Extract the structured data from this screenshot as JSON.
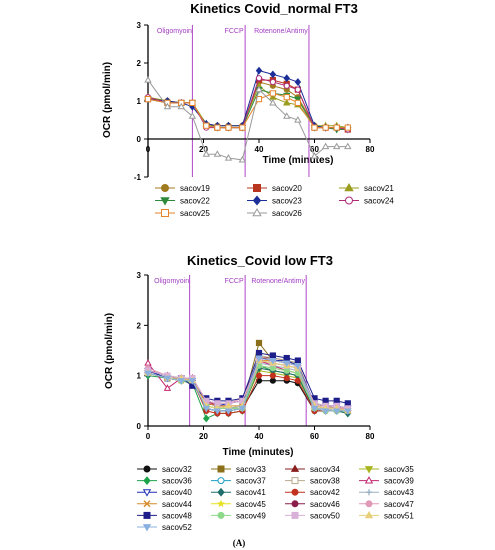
{
  "caption": "(A)",
  "chart_data": [
    {
      "type": "line",
      "title": "Kinetics Covid_normal FT3",
      "xlabel": "Time (minutes)",
      "ylabel": "OCR (pmol/min)",
      "xlim": [
        0,
        80
      ],
      "ylim": [
        -1,
        3
      ],
      "xticks": [
        "0",
        "20",
        "40",
        "60",
        "80"
      ],
      "yticks": [
        "-1",
        "0",
        "1",
        "2",
        "3"
      ],
      "phases": [
        {
          "label": "Oligomyoin",
          "x": 16
        },
        {
          "label": "FCCP",
          "x": 35
        },
        {
          "label": "Rotenone/Antimy",
          "x": 58
        }
      ],
      "x": [
        0,
        7,
        12,
        16,
        21,
        25,
        29,
        34,
        40,
        45,
        50,
        54,
        60,
        64,
        68,
        72
      ],
      "legend_columns": 3,
      "series": [
        {
          "name": "sacov19",
          "color": "#a07a1e",
          "marker": "circle",
          "values": [
            1.1,
            1.0,
            0.95,
            0.95,
            0.35,
            0.35,
            0.35,
            0.35,
            1.5,
            1.4,
            1.3,
            1.1,
            0.35,
            0.3,
            0.3,
            0.3
          ]
        },
        {
          "name": "sacov20",
          "color": "#b8361f",
          "marker": "square",
          "values": [
            1.05,
            0.95,
            0.95,
            0.95,
            0.35,
            0.3,
            0.3,
            0.3,
            1.55,
            1.55,
            1.45,
            1.3,
            0.3,
            0.3,
            0.3,
            0.25
          ]
        },
        {
          "name": "sacov21",
          "color": "#999c1c",
          "marker": "triangle",
          "values": [
            1.1,
            1.0,
            0.95,
            0.95,
            0.4,
            0.35,
            0.35,
            0.35,
            1.4,
            1.1,
            0.95,
            0.9,
            0.35,
            0.35,
            0.35,
            0.3
          ]
        },
        {
          "name": "sacov22",
          "color": "#2e8a3a",
          "marker": "triangle-down",
          "values": [
            1.05,
            0.95,
            0.95,
            0.95,
            0.35,
            0.3,
            0.3,
            0.3,
            1.3,
            1.2,
            1.15,
            1.05,
            0.3,
            0.3,
            0.25,
            0.25
          ]
        },
        {
          "name": "sacov23",
          "color": "#1c2f98",
          "marker": "diamond",
          "values": [
            1.05,
            1.0,
            0.95,
            0.85,
            0.4,
            0.35,
            0.35,
            0.35,
            1.8,
            1.7,
            1.6,
            1.5,
            0.35,
            0.3,
            0.3,
            0.3
          ]
        },
        {
          "name": "sacov24",
          "color": "#b02a78",
          "marker": "circle-open",
          "values": [
            1.1,
            0.95,
            0.95,
            0.95,
            0.3,
            0.3,
            0.3,
            0.3,
            1.6,
            1.5,
            1.4,
            1.3,
            0.3,
            0.3,
            0.3,
            0.25
          ]
        },
        {
          "name": "sacov25",
          "color": "#e5852a",
          "marker": "square-open",
          "values": [
            1.05,
            0.95,
            0.95,
            0.95,
            0.35,
            0.3,
            0.3,
            0.3,
            1.05,
            1.2,
            1.1,
            0.95,
            0.3,
            0.3,
            0.3,
            0.3
          ]
        },
        {
          "name": "sacov26",
          "color": "#9a9a9a",
          "marker": "triangle-open",
          "values": [
            1.55,
            0.85,
            0.85,
            0.6,
            -0.4,
            -0.4,
            -0.5,
            -0.55,
            1.3,
            0.95,
            0.6,
            0.5,
            -0.45,
            -0.2,
            -0.2,
            -0.2
          ]
        }
      ]
    },
    {
      "type": "line",
      "title": "Kinetics_Covid low FT3",
      "xlabel": "Time (minutes)",
      "ylabel": "OCR (pmol/min)",
      "xlim": [
        0,
        80
      ],
      "ylim": [
        0,
        3
      ],
      "xticks": [
        "0",
        "20",
        "40",
        "60",
        "80"
      ],
      "yticks": [
        "0",
        "1",
        "2",
        "3"
      ],
      "phases": [
        {
          "label": "Oligomyoin",
          "x": 15
        },
        {
          "label": "FCCP",
          "x": 35
        },
        {
          "label": "Rotenone/Antimy",
          "x": 57
        }
      ],
      "x": [
        0,
        7,
        12,
        16,
        21,
        25,
        29,
        34,
        40,
        45,
        50,
        54,
        60,
        64,
        68,
        72
      ],
      "legend_columns": 4,
      "series": [
        {
          "name": "sacov32",
          "color": "#111111",
          "marker": "circle",
          "values": [
            1.05,
            0.95,
            0.9,
            0.9,
            0.35,
            0.3,
            0.3,
            0.35,
            0.9,
            0.9,
            0.9,
            0.85,
            0.3,
            0.3,
            0.3,
            0.3
          ]
        },
        {
          "name": "sacov33",
          "color": "#8b6f1a",
          "marker": "square",
          "values": [
            1.1,
            0.95,
            0.95,
            0.9,
            0.4,
            0.35,
            0.35,
            0.4,
            1.65,
            1.3,
            1.3,
            1.2,
            0.4,
            0.35,
            0.35,
            0.3
          ]
        },
        {
          "name": "sacov34",
          "color": "#8a1f1f",
          "marker": "triangle",
          "values": [
            1.1,
            1.0,
            0.95,
            0.95,
            0.5,
            0.4,
            0.4,
            0.4,
            1.35,
            1.35,
            1.3,
            1.25,
            0.4,
            0.35,
            0.35,
            0.35
          ]
        },
        {
          "name": "sacov35",
          "color": "#a9b51f",
          "marker": "triangle-down",
          "values": [
            1.05,
            0.95,
            0.9,
            0.9,
            0.4,
            0.35,
            0.35,
            0.35,
            1.1,
            1.05,
            1.0,
            0.95,
            0.35,
            0.3,
            0.3,
            0.3
          ]
        },
        {
          "name": "sacov36",
          "color": "#1ea34a",
          "marker": "diamond",
          "values": [
            1.0,
            0.95,
            0.9,
            0.85,
            0.15,
            0.25,
            0.25,
            0.3,
            1.2,
            1.1,
            1.05,
            1.0,
            0.3,
            0.3,
            0.3,
            0.25
          ]
        },
        {
          "name": "sacov37",
          "color": "#1c9ec2",
          "marker": "circle-open",
          "values": [
            1.1,
            0.95,
            0.95,
            0.9,
            0.4,
            0.35,
            0.35,
            0.35,
            1.3,
            1.25,
            1.2,
            1.15,
            0.35,
            0.3,
            0.3,
            0.3
          ]
        },
        {
          "name": "sacov38",
          "color": "#b8a88c",
          "marker": "square-open",
          "values": [
            1.1,
            1.0,
            0.95,
            0.9,
            0.45,
            0.4,
            0.4,
            0.4,
            1.4,
            1.35,
            1.3,
            1.25,
            0.4,
            0.4,
            0.35,
            0.35
          ]
        },
        {
          "name": "sacov39",
          "color": "#c2286e",
          "marker": "triangle-open",
          "values": [
            1.25,
            0.75,
            0.95,
            0.95,
            0.5,
            0.4,
            0.4,
            0.4,
            1.3,
            1.2,
            1.1,
            1.05,
            0.4,
            0.35,
            0.35,
            0.3
          ]
        },
        {
          "name": "sacov40",
          "color": "#1e2fb5",
          "marker": "triangle-down-open",
          "values": [
            1.1,
            0.95,
            0.95,
            0.9,
            0.45,
            0.4,
            0.45,
            0.5,
            1.35,
            1.3,
            1.3,
            1.2,
            0.45,
            0.4,
            0.4,
            0.35
          ]
        },
        {
          "name": "sacov41",
          "color": "#1f6e6a",
          "marker": "diamond",
          "values": [
            1.05,
            0.95,
            0.9,
            0.9,
            0.35,
            0.3,
            0.3,
            0.35,
            1.15,
            1.1,
            1.05,
            1.0,
            0.3,
            0.3,
            0.3,
            0.25
          ]
        },
        {
          "name": "sacov42",
          "color": "#c2311e",
          "marker": "circle",
          "values": [
            1.05,
            0.95,
            0.95,
            0.9,
            0.3,
            0.25,
            0.25,
            0.3,
            1.0,
            1.0,
            0.95,
            0.9,
            0.3,
            0.3,
            0.3,
            0.3
          ]
        },
        {
          "name": "sacov43",
          "color": "#9ab0c2",
          "marker": "plus",
          "values": [
            1.1,
            1.0,
            0.95,
            0.95,
            0.4,
            0.35,
            0.35,
            0.4,
            1.25,
            1.2,
            1.15,
            1.1,
            0.35,
            0.35,
            0.3,
            0.3
          ]
        },
        {
          "name": "sacov44",
          "color": "#d98a2a",
          "marker": "cross",
          "values": [
            1.05,
            0.95,
            0.9,
            0.9,
            0.45,
            0.4,
            0.4,
            0.4,
            1.3,
            1.3,
            1.25,
            1.2,
            0.4,
            0.35,
            0.35,
            0.35
          ]
        },
        {
          "name": "sacov45",
          "color": "#e6e01e",
          "marker": "star",
          "values": [
            1.05,
            0.95,
            0.9,
            0.9,
            0.4,
            0.35,
            0.35,
            0.35,
            1.2,
            1.15,
            1.1,
            1.05,
            0.35,
            0.3,
            0.3,
            0.3
          ]
        },
        {
          "name": "sacov46",
          "color": "#8a1e4a",
          "marker": "circle",
          "values": [
            1.1,
            1.0,
            0.95,
            0.95,
            0.5,
            0.45,
            0.45,
            0.5,
            1.3,
            1.25,
            1.2,
            1.15,
            0.45,
            0.4,
            0.4,
            0.35
          ]
        },
        {
          "name": "sacov47",
          "color": "#e09ab8",
          "marker": "circle",
          "values": [
            1.15,
            1.0,
            0.95,
            0.95,
            0.5,
            0.45,
            0.45,
            0.55,
            1.2,
            1.15,
            1.1,
            1.05,
            0.4,
            0.35,
            0.35,
            0.35
          ]
        },
        {
          "name": "sacov48",
          "color": "#1e1e8a",
          "marker": "square",
          "values": [
            1.05,
            0.95,
            0.95,
            0.8,
            0.55,
            0.5,
            0.5,
            0.55,
            1.45,
            1.4,
            1.35,
            1.3,
            0.55,
            0.5,
            0.5,
            0.45
          ]
        },
        {
          "name": "sacov49",
          "color": "#8ed88a",
          "marker": "circle",
          "values": [
            1.05,
            0.95,
            0.9,
            0.9,
            0.4,
            0.35,
            0.35,
            0.35,
            1.2,
            1.15,
            1.1,
            1.05,
            0.35,
            0.3,
            0.3,
            0.3
          ]
        },
        {
          "name": "sacov50",
          "color": "#d8b0d8",
          "marker": "square",
          "values": [
            1.1,
            1.0,
            0.95,
            0.95,
            0.5,
            0.45,
            0.45,
            0.5,
            1.3,
            1.25,
            1.2,
            1.15,
            0.45,
            0.4,
            0.4,
            0.35
          ]
        },
        {
          "name": "sacov51",
          "color": "#e8d07a",
          "marker": "triangle",
          "values": [
            1.05,
            0.95,
            0.95,
            0.9,
            0.4,
            0.35,
            0.4,
            0.4,
            1.3,
            1.25,
            1.2,
            1.15,
            0.4,
            0.35,
            0.35,
            0.3
          ]
        },
        {
          "name": "sacov52",
          "color": "#8ab0e0",
          "marker": "triangle-down",
          "values": [
            1.05,
            0.95,
            0.9,
            0.9,
            0.35,
            0.3,
            0.3,
            0.35,
            1.35,
            1.3,
            1.25,
            1.2,
            0.35,
            0.3,
            0.3,
            0.3
          ]
        }
      ]
    }
  ]
}
